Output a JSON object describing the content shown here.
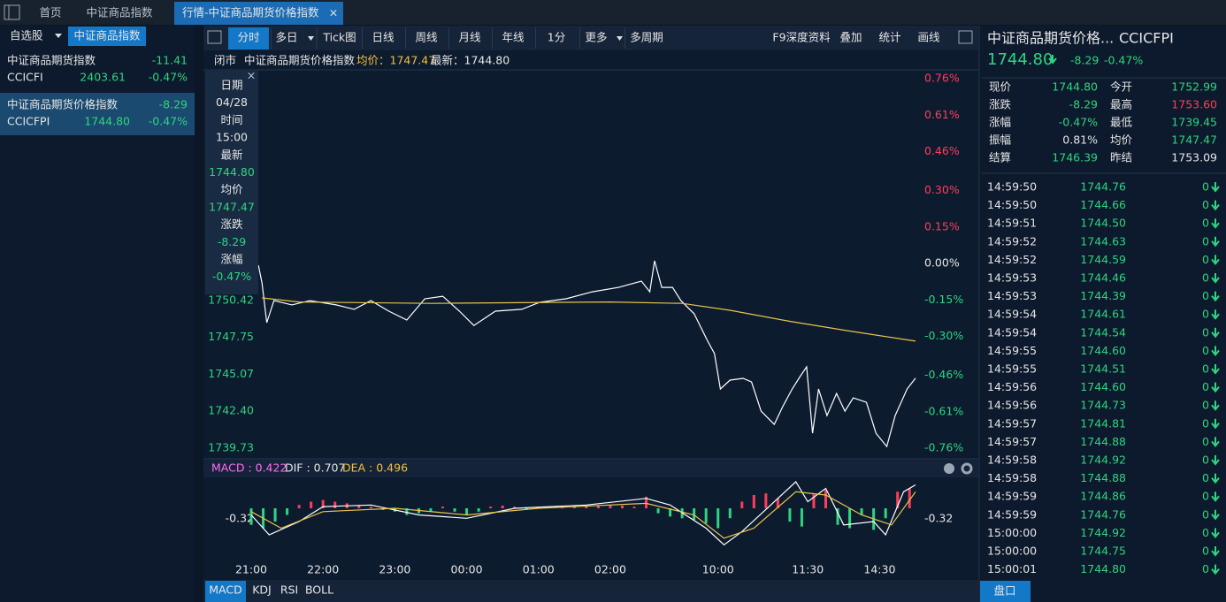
{
  "top_tabs": [
    "首页",
    "中证商品指数",
    "行情-中证商品期货价格指数"
  ],
  "tab_close": "×",
  "sidebar": {
    "tabs": [
      "自选股",
      "中证商品指数"
    ],
    "items": [
      {
        "name": "中证商品期货指数",
        "change": "-11.41",
        "code": "CCICFI",
        "price": "2403.61",
        "pct": "-0.47%"
      },
      {
        "name": "中证商品期货价格指数",
        "change": "-8.29",
        "code": "CCICFPI",
        "price": "1744.80",
        "pct": "-0.47%"
      }
    ]
  },
  "toolbar": {
    "left": [
      "分时",
      "多日",
      "Tick图",
      "日线",
      "周线",
      "月线",
      "年线",
      "1分",
      "更多",
      "多周期"
    ],
    "right": [
      "F9深度资料",
      "叠加",
      "统计",
      "画线"
    ]
  },
  "info_bar": {
    "status": "闭市",
    "name": "中证商品期货价格指数",
    "avg": "均价：1747.47",
    "last": "最新：1744.80"
  },
  "tooltip": {
    "close": "×",
    "rows": [
      "日期",
      "04/28",
      "时间",
      "15:00",
      "最新",
      "1744.80",
      "均价",
      "1747.47",
      "涨跌",
      "-8.29",
      "涨幅",
      "-0.47%"
    ]
  },
  "price_chart": {
    "type": "line",
    "xlim": [
      0,
      555
    ],
    "xticks": [
      {
        "value": 0,
        "label": "21:00"
      },
      {
        "value": 60,
        "label": "22:00"
      },
      {
        "value": 120,
        "label": "23:00"
      },
      {
        "value": 180,
        "label": "00:00"
      },
      {
        "value": 240,
        "label": "01:00"
      },
      {
        "value": 300,
        "label": "02:00"
      },
      {
        "value": 390,
        "label": "10:00"
      },
      {
        "value": 465,
        "label": "11:30"
      },
      {
        "value": 525,
        "label": "14:30"
      }
    ],
    "ylim": [
      1739.73,
      1766.45
    ],
    "yticks": [
      1750.42,
      1747.75,
      1745.07,
      {
        "value": 1742.4,
        "label": "1742.40"
      },
      1739.73
    ],
    "y2lim": [
      -0.76,
      0.76
    ],
    "y2ticks": [
      {
        "value": 0.76,
        "label": "0.76%"
      },
      {
        "value": 0.61,
        "label": "0.61%"
      },
      {
        "value": 0.46,
        "label": "0.46%"
      },
      {
        "value": 0.3,
        "label": "0.30%"
      },
      {
        "value": 0.15,
        "label": "0.15%"
      },
      {
        "value": 0,
        "label": "0.00%"
      },
      {
        "value": -0.15,
        "label": "-0.15%"
      },
      {
        "value": -0.3,
        "label": "-0.30%"
      },
      {
        "value": -0.46,
        "label": "-0.46%"
      },
      {
        "value": -0.61,
        "label": "-0.61%"
      },
      {
        "value": -0.76,
        "label": "-0.76%"
      }
    ],
    "series": [
      {
        "color": "#ffffff",
        "x": [
          6,
          9,
          13,
          19,
          34,
          49,
          71,
          86,
          100,
          115,
          130,
          145,
          160,
          174,
          186,
          204,
          226,
          241,
          263,
          285,
          307,
          326,
          333,
          337,
          343,
          352,
          359,
          370,
          381,
          387,
          392,
          400,
          411,
          418,
          426,
          437,
          444,
          452,
          459,
          464,
          469,
          474,
          481,
          489,
          496,
          503,
          514,
          522,
          531,
          538,
          548,
          555
        ],
        "values": [
          1752.96,
          1751.68,
          1748.81,
          1750.4,
          1750.09,
          1750.4,
          1750.09,
          1749.77,
          1750.4,
          1749.64,
          1749.0,
          1750.53,
          1750.72,
          1749.64,
          1748.6,
          1749.64,
          1749.77,
          1750.28,
          1750.53,
          1751.04,
          1751.36,
          1751.81,
          1751.04,
          1753.28,
          1751.36,
          1751.36,
          1750.4,
          1749.45,
          1747.53,
          1746.57,
          1744.01,
          1744.65,
          1744.78,
          1744.52,
          1742.41,
          1741.45,
          1742.73,
          1744.01,
          1744.97,
          1745.61,
          1740.81,
          1744.01,
          1742.09,
          1743.69,
          1742.41,
          1743.37,
          1743.05,
          1740.81,
          1739.85,
          1742.09,
          1744.01,
          1744.8
        ]
      },
      {
        "color": "#e8c34a",
        "x": [
          9,
          40,
          150,
          300,
          360,
          400,
          450,
          500,
          555
        ],
        "values": [
          1750.6,
          1750.3,
          1750.2,
          1750.3,
          1750.2,
          1749.7,
          1748.9,
          1748.2,
          1747.47
        ]
      }
    ]
  },
  "macd": {
    "type": "bar",
    "legend": [
      "MACD : 0.422",
      "DIF : 0.707",
      "DEA : 0.496"
    ],
    "xlim": [
      0,
      555
    ],
    "ylim": [
      -1.52,
      0.8
    ],
    "yticks": [
      -0.32
    ],
    "up_color": "#ff3d5a",
    "down_color": "#2fd47f",
    "x": [
      0,
      10,
      20,
      30,
      40,
      50,
      60,
      70,
      80,
      90,
      100,
      110,
      120,
      130,
      140,
      150,
      160,
      170,
      180,
      190,
      200,
      210,
      220,
      230,
      240,
      250,
      260,
      270,
      280,
      290,
      300,
      310,
      320,
      330,
      340,
      350,
      360,
      370,
      380,
      390,
      400,
      410,
      420,
      430,
      440,
      450,
      460,
      470,
      480,
      490,
      500,
      510,
      520,
      530,
      540,
      550
    ],
    "values": [
      -0.5,
      -0.6,
      -0.4,
      -0.2,
      0.1,
      0.2,
      0.25,
      0.2,
      0.15,
      0.1,
      0.05,
      -0.05,
      -0.1,
      -0.2,
      -0.15,
      -0.1,
      0.05,
      -0.1,
      -0.2,
      -0.1,
      0.05,
      0.08,
      0.05,
      -0.05,
      0.05,
      0.06,
      0.08,
      0.05,
      0.1,
      0.08,
      0.1,
      0.08,
      0.05,
      0.35,
      -0.15,
      -0.25,
      -0.3,
      -0.35,
      -0.45,
      -0.6,
      -0.3,
      0.2,
      0.4,
      0.45,
      0.3,
      -0.4,
      -0.55,
      0.45,
      0.55,
      -0.5,
      -0.6,
      -0.2,
      -0.65,
      -0.3,
      0.5,
      0.6
    ],
    "lines": [
      {
        "color": "#ffffff",
        "x": [
          0,
          15,
          40,
          60,
          100,
          140,
          180,
          220,
          280,
          330,
          350,
          380,
          395,
          410,
          440,
          455,
          465,
          480,
          495,
          520,
          530,
          545,
          555
        ],
        "values": [
          -0.2,
          -0.8,
          -0.4,
          0.05,
          0.1,
          -0.2,
          -0.3,
          0.0,
          0.1,
          0.3,
          0.1,
          -0.6,
          -1.1,
          -0.7,
          0.3,
          0.8,
          0.2,
          0.6,
          -0.5,
          -0.4,
          -0.8,
          0.5,
          0.707
        ]
      },
      {
        "color": "#e8c34a",
        "x": [
          0,
          25,
          60,
          120,
          180,
          240,
          330,
          370,
          395,
          420,
          455,
          480,
          510,
          535,
          555
        ],
        "values": [
          -0.1,
          -0.6,
          -0.1,
          0.0,
          -0.2,
          0.0,
          0.15,
          -0.2,
          -0.9,
          -0.6,
          0.5,
          0.4,
          -0.2,
          -0.5,
          0.496
        ]
      }
    ]
  },
  "bottom_tabs": [
    "MACD",
    "KDJ",
    "RSI",
    "BOLL"
  ],
  "quote": {
    "title": "中证商品期货价格...",
    "code": "CCICFPI",
    "price": "1744.80",
    "change": "-8.29",
    "pct": "-0.47%",
    "rows": [
      [
        "现价",
        "1744.80",
        "今开",
        "1752.99"
      ],
      [
        "涨跌",
        "-8.29",
        "最高",
        "1753.60"
      ],
      [
        "涨幅",
        "-0.47%",
        "最低",
        "1739.45"
      ],
      [
        "振幅",
        "0.81%",
        "均价",
        "1747.47"
      ],
      [
        "结算",
        "1746.39",
        "昨结",
        "1753.09"
      ]
    ]
  },
  "ticks": [
    {
      "time": "14:59:50",
      "price": "1744.76",
      "volume": 0
    },
    {
      "time": "14:59:50",
      "price": "1744.66",
      "volume": 0
    },
    {
      "time": "14:59:51",
      "price": "1744.50",
      "volume": 0
    },
    {
      "time": "14:59:52",
      "price": "1744.63",
      "volume": 0
    },
    {
      "time": "14:59:52",
      "price": "1744.59",
      "volume": 0
    },
    {
      "time": "14:59:53",
      "price": "1744.46",
      "volume": 0
    },
    {
      "time": "14:59:53",
      "price": "1744.39",
      "volume": 0
    },
    {
      "time": "14:59:54",
      "price": "1744.61",
      "volume": 0
    },
    {
      "time": "14:59:54",
      "price": "1744.54",
      "volume": 0
    },
    {
      "time": "14:59:55",
      "price": "1744.60",
      "volume": 0
    },
    {
      "time": "14:59:55",
      "price": "1744.51",
      "volume": 0
    },
    {
      "time": "14:59:56",
      "price": "1744.60",
      "volume": 0
    },
    {
      "time": "14:59:56",
      "price": "1744.73",
      "volume": 0
    },
    {
      "time": "14:59:57",
      "price": "1744.81",
      "volume": 0
    },
    {
      "time": "14:59:57",
      "price": "1744.88",
      "volume": 0
    },
    {
      "time": "14:59:58",
      "price": "1744.92",
      "volume": 0
    },
    {
      "time": "14:59:58",
      "price": "1744.88",
      "volume": 0
    },
    {
      "time": "14:59:59",
      "price": "1744.86",
      "volume": 0
    },
    {
      "time": "14:59:59",
      "price": "1744.76",
      "volume": 0
    },
    {
      "time": "15:00:00",
      "price": "1744.92",
      "volume": 0
    },
    {
      "time": "15:00:00",
      "price": "1744.75",
      "volume": 0
    },
    {
      "time": "15:00:01",
      "price": "1744.80",
      "volume": 0
    }
  ],
  "panel_button": "盘口"
}
